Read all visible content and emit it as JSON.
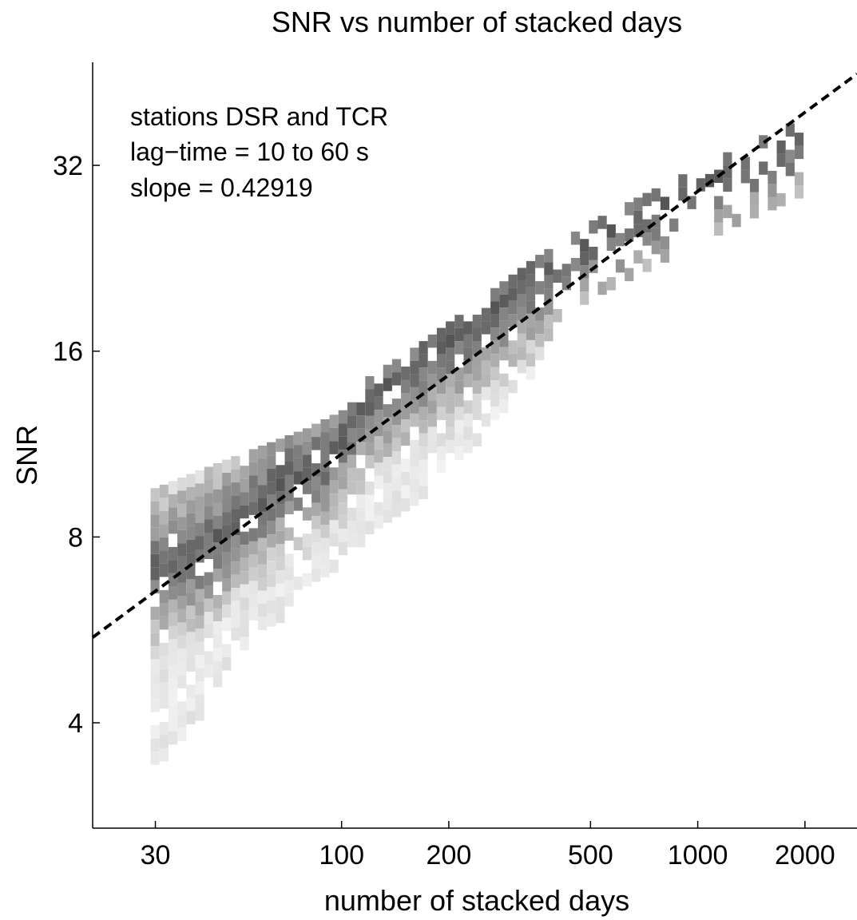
{
  "chart_data": {
    "type": "heatmap",
    "title": "SNR vs number of stacked days",
    "xlabel": "number of stacked days",
    "ylabel": "SNR",
    "xscale": "log",
    "yscale": "log2",
    "xlim": [
      20,
      2800
    ],
    "ylim": [
      2.7,
      47
    ],
    "xticks": [
      30,
      100,
      200,
      500,
      1000,
      2000
    ],
    "yticks": [
      4,
      8,
      16,
      32
    ],
    "grid": false,
    "annotations": [
      "stations DSR and TCR",
      "lag−time = 10 to 60 s",
      "slope = 0.42919"
    ],
    "fit_line": {
      "style": "dashed",
      "color": "#000000",
      "slope": 0.42919,
      "points": [
        [
          20,
          5.5
        ],
        [
          2800,
          45
        ]
      ]
    },
    "density": {
      "colormap": "gray (white = low, dark gray = high)",
      "ridge_points": [
        [
          30,
          7.2
        ],
        [
          40,
          7.6
        ],
        [
          50,
          8.4
        ],
        [
          70,
          10.0
        ],
        [
          90,
          10.6
        ],
        [
          120,
          13.5
        ],
        [
          160,
          15.0
        ],
        [
          230,
          17.5
        ],
        [
          350,
          21.0
        ],
        [
          500,
          24.0
        ],
        [
          700,
          26.5
        ],
        [
          1000,
          29.5
        ],
        [
          1500,
          33.0
        ],
        [
          2000,
          35.5
        ]
      ],
      "lower_spread_points": [
        [
          30,
          3.5
        ],
        [
          40,
          4.2
        ],
        [
          50,
          5.3
        ],
        [
          70,
          6.2
        ],
        [
          100,
          7.5
        ],
        [
          150,
          9.0
        ],
        [
          250,
          12.0
        ],
        [
          400,
          17.0
        ]
      ],
      "upper_spread_points": [
        [
          30,
          9.6
        ],
        [
          50,
          10.8
        ],
        [
          80,
          12.0
        ],
        [
          120,
          13.5
        ],
        [
          200,
          16.0
        ],
        [
          400,
          21.0
        ],
        [
          1000,
          31.0
        ]
      ]
    }
  }
}
